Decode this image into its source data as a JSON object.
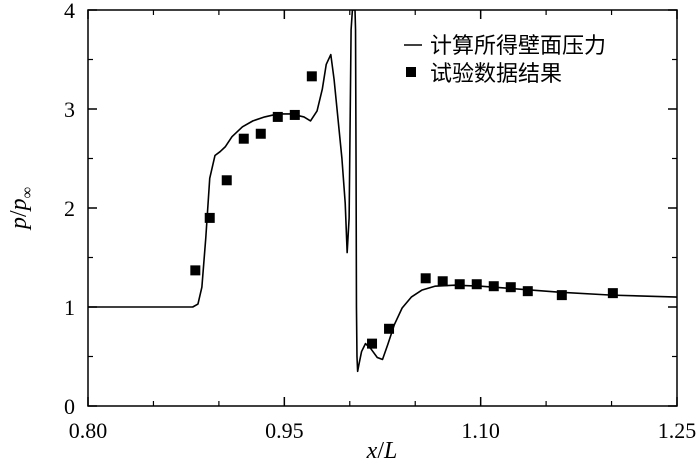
{
  "chart_data": {
    "type": "line",
    "xlabel_main": "x",
    "xlabel_slash": "/",
    "xlabel_denom": "L",
    "ylabel_num": "p",
    "ylabel_slash": "/",
    "ylabel_den": "p",
    "ylabel_sub": "∞",
    "xlim": [
      0.8,
      1.25
    ],
    "ylim": [
      0,
      4
    ],
    "x_ticks": [
      0.8,
      0.95,
      1.1,
      1.25
    ],
    "x_tick_labels": [
      "0.80",
      "0.95",
      "1.10",
      "1.25"
    ],
    "x_minor_ticks": [
      0.85,
      0.9,
      1.0,
      1.05,
      1.15,
      1.2
    ],
    "y_ticks": [
      0,
      1,
      2,
      3,
      4
    ],
    "y_tick_labels": [
      "0",
      "1",
      "2",
      "3",
      "4"
    ],
    "grid": false,
    "legend_position": "top-right",
    "series": [
      {
        "name": "计算所得壁面压力",
        "kind": "line",
        "color": "#000000",
        "x": [
          0.8,
          0.85,
          0.88,
          0.884,
          0.887,
          0.89,
          0.893,
          0.897,
          0.901,
          0.905,
          0.91,
          0.918,
          0.926,
          0.935,
          0.945,
          0.955,
          0.965,
          0.97,
          0.975,
          0.979,
          0.982,
          0.9855,
          0.988,
          0.991,
          0.994,
          0.9965,
          0.998,
          0.9995,
          1.001,
          1.002,
          1.003,
          1.004,
          1.0044,
          1.0048,
          1.0051,
          1.0055,
          1.006,
          1.007,
          1.009,
          1.012,
          1.016,
          1.021,
          1.025,
          1.029,
          1.034,
          1.04,
          1.047,
          1.055,
          1.065,
          1.08,
          1.1,
          1.13,
          1.16,
          1.2,
          1.25
        ],
        "y": [
          1.0,
          1.0,
          1.0,
          1.03,
          1.2,
          1.7,
          2.3,
          2.53,
          2.57,
          2.62,
          2.72,
          2.82,
          2.88,
          2.92,
          2.95,
          2.95,
          2.92,
          2.88,
          2.98,
          3.2,
          3.45,
          3.55,
          3.3,
          2.9,
          2.5,
          2.05,
          1.55,
          1.9,
          3.8,
          4.0,
          4.0,
          4.0,
          3.8,
          2.4,
          1.0,
          0.5,
          0.35,
          0.42,
          0.55,
          0.63,
          0.58,
          0.49,
          0.47,
          0.62,
          0.82,
          0.99,
          1.1,
          1.17,
          1.21,
          1.22,
          1.21,
          1.18,
          1.15,
          1.12,
          1.1
        ]
      },
      {
        "name": "试验数据结果",
        "kind": "scatter",
        "color": "#000000",
        "x": [
          0.882,
          0.893,
          0.906,
          0.919,
          0.932,
          0.945,
          0.958,
          0.971,
          1.017,
          1.03,
          1.058,
          1.071,
          1.084,
          1.097,
          1.11,
          1.123,
          1.136,
          1.162,
          1.201
        ],
        "y": [
          1.37,
          1.9,
          2.28,
          2.7,
          2.75,
          2.92,
          2.94,
          3.33,
          0.63,
          0.78,
          1.29,
          1.26,
          1.23,
          1.23,
          1.21,
          1.2,
          1.16,
          1.12,
          1.14
        ]
      }
    ]
  }
}
